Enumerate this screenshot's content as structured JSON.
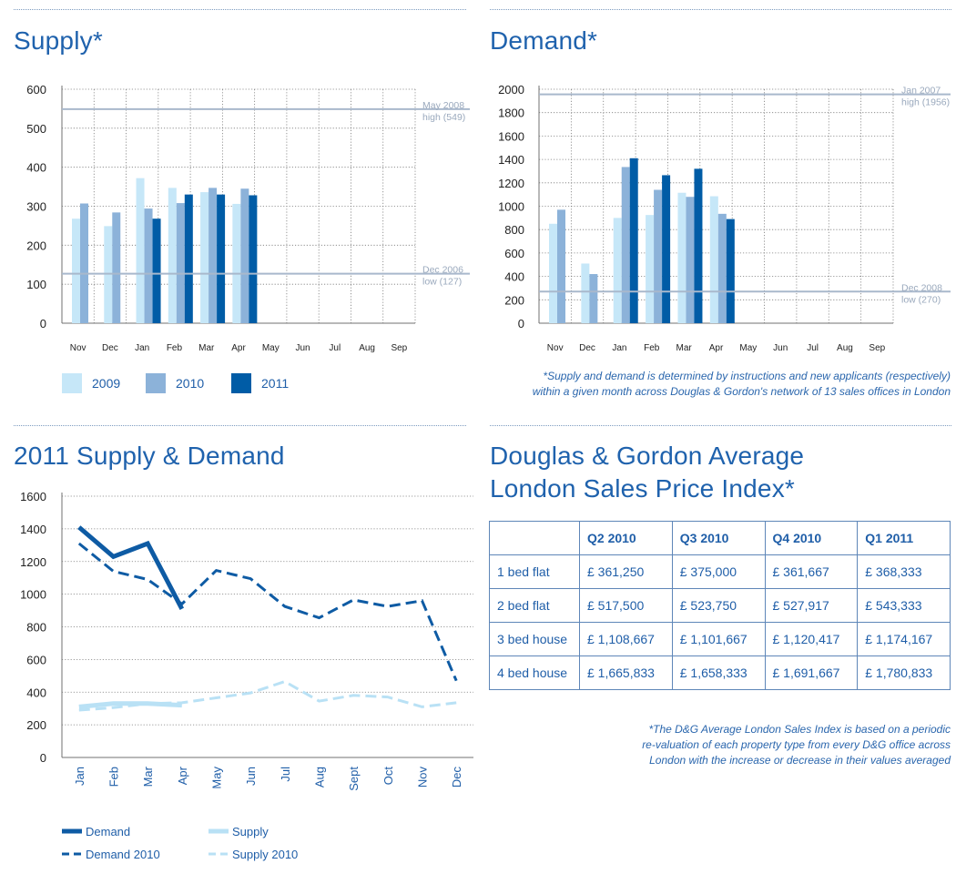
{
  "colors": {
    "c2009": "#c6e7f8",
    "c2010": "#8cb2d9",
    "c2011": "#005ca6",
    "demand": "#0e5ba4",
    "supply": "#b9e1f5",
    "refline": "#a9b8cc",
    "text": "#1f5ea8",
    "axis": "#8a8a8a"
  },
  "panels": {
    "supply_title": "Supply*",
    "demand_title": "Demand*",
    "combined_title": "2011 Supply & Demand",
    "index_title_line1": "Douglas & Gordon Average",
    "index_title_line2": "London Sales Price Index*"
  },
  "footnotes": {
    "supply_demand_line1": "*Supply and demand is determined by instructions and new applicants (respectively)",
    "supply_demand_line2": "within a given month across Douglas & Gordon's network of 13 sales offices in London",
    "index_line1": "*The D&G Average London Sales Index is based on a periodic",
    "index_line2": "re-valuation of each property type from every D&G office across",
    "index_line3": "London with the increase or decrease in their values averaged"
  },
  "price_index": {
    "headers": [
      "",
      "Q2 2010",
      "Q3 2010",
      "Q4 2010",
      "Q1 2011"
    ],
    "rows": [
      [
        "1 bed flat",
        "£ 361,250",
        "£ 375,000",
        "£ 361,667",
        "£ 368,333"
      ],
      [
        "2 bed flat",
        "£ 517,500",
        "£ 523,750",
        "£ 527,917",
        "£ 543,333"
      ],
      [
        "3 bed house",
        "£ 1,108,667",
        "£ 1,101,667",
        "£ 1,120,417",
        "£ 1,174,167"
      ],
      [
        "4 bed house",
        "£ 1,665,833",
        "£ 1,658,333",
        "£ 1,691,667",
        "£ 1,780,833"
      ]
    ]
  },
  "chart_data": [
    {
      "id": "supply",
      "type": "bar",
      "title": "Supply*",
      "categories": [
        "Nov",
        "Dec",
        "Jan",
        "Feb",
        "Mar",
        "Apr",
        "May",
        "Jun",
        "Jul",
        "Aug",
        "Sep"
      ],
      "series": [
        {
          "name": "2009",
          "values": [
            268,
            249,
            372,
            347,
            336,
            306,
            null,
            null,
            null,
            null,
            null
          ]
        },
        {
          "name": "2010",
          "values": [
            307,
            284,
            294,
            308,
            347,
            345,
            null,
            null,
            null,
            null,
            null
          ]
        },
        {
          "name": "2011",
          "values": [
            null,
            null,
            268,
            330,
            330,
            328,
            null,
            null,
            null,
            null,
            null
          ]
        }
      ],
      "ylim": [
        0,
        600
      ],
      "yticks": [
        0,
        100,
        200,
        300,
        400,
        500,
        600
      ],
      "reference_lines": [
        {
          "value": 549,
          "label1": "May 2008",
          "label2": "high (549)"
        },
        {
          "value": 127,
          "label1": "Dec 2006",
          "label2": "low (127)"
        }
      ],
      "legend": [
        "2009",
        "2010",
        "2011"
      ],
      "legend_position": "bottom"
    },
    {
      "id": "demand",
      "type": "bar",
      "title": "Demand*",
      "categories": [
        "Nov",
        "Dec",
        "Jan",
        "Feb",
        "Mar",
        "Apr",
        "May",
        "Jun",
        "Jul",
        "Aug",
        "Sep"
      ],
      "series": [
        {
          "name": "2009",
          "values": [
            850,
            510,
            900,
            925,
            1115,
            1085,
            null,
            null,
            null,
            null,
            null
          ]
        },
        {
          "name": "2010",
          "values": [
            970,
            420,
            1335,
            1140,
            1080,
            935,
            null,
            null,
            null,
            null,
            null
          ]
        },
        {
          "name": "2011",
          "values": [
            null,
            null,
            1410,
            1265,
            1320,
            890,
            null,
            null,
            null,
            null,
            null
          ]
        }
      ],
      "ylim": [
        0,
        2000
      ],
      "yticks": [
        0,
        200,
        400,
        600,
        800,
        1000,
        1200,
        1400,
        1600,
        1800,
        2000
      ],
      "reference_lines": [
        {
          "value": 1956,
          "label1": "Jan 2007",
          "label2": "high (1956)"
        },
        {
          "value": 270,
          "label1": "Dec 2008",
          "label2": "low (270)"
        }
      ]
    },
    {
      "id": "combined",
      "type": "line",
      "title": "2011 Supply & Demand",
      "categories": [
        "Jan",
        "Feb",
        "Mar",
        "Apr",
        "May",
        "Jun",
        "Jul",
        "Aug",
        "Sept",
        "Oct",
        "Nov",
        "Dec"
      ],
      "series": [
        {
          "name": "Demand",
          "style": "solid",
          "color": "demand",
          "values": [
            1410,
            1230,
            1310,
            910,
            null,
            null,
            null,
            null,
            null,
            null,
            null,
            null
          ]
        },
        {
          "name": "Demand 2010",
          "style": "dashed",
          "color": "demand",
          "values": [
            1310,
            1140,
            1090,
            940,
            1145,
            1095,
            925,
            855,
            965,
            925,
            960,
            470
          ]
        },
        {
          "name": "Supply",
          "style": "solid",
          "color": "supply",
          "values": [
            310,
            330,
            330,
            320,
            null,
            null,
            null,
            null,
            null,
            null,
            null,
            null
          ]
        },
        {
          "name": "Supply 2010",
          "style": "dashed",
          "color": "supply",
          "values": [
            290,
            305,
            330,
            335,
            365,
            395,
            465,
            345,
            380,
            370,
            310,
            335
          ]
        }
      ],
      "ylim": [
        0,
        1600
      ],
      "yticks": [
        0,
        200,
        400,
        600,
        800,
        1000,
        1200,
        1400,
        1600
      ],
      "legend": [
        "Demand",
        "Supply",
        "Demand 2010",
        "Supply 2010"
      ],
      "legend_position": "bottom"
    }
  ]
}
